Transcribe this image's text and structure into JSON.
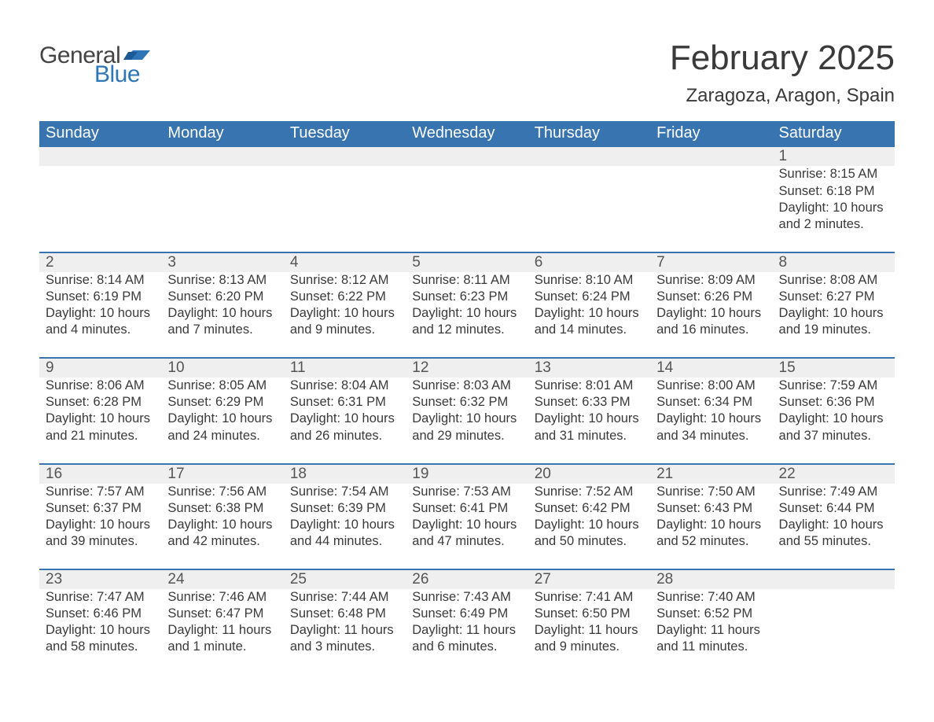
{
  "brand": {
    "word1": "General",
    "word2": "Blue",
    "word1_color": "#444444",
    "word2_color": "#2f76b8",
    "flag_color": "#2f76b8"
  },
  "title": "February 2025",
  "location": "Zaragoza, Aragon, Spain",
  "colors": {
    "header_bg": "#3874b0",
    "header_text": "#ffffff",
    "row_separator": "#3874b0",
    "daynum_bg": "#efefef",
    "text": "#3a3a3a",
    "background": "#ffffff"
  },
  "typography": {
    "title_fontsize": 44,
    "location_fontsize": 24,
    "dow_fontsize": 20,
    "daynum_fontsize": 19,
    "body_fontsize": 16.5
  },
  "layout": {
    "columns": 7,
    "rows": 5,
    "first_day_column_index": 6
  },
  "days_of_week": [
    "Sunday",
    "Monday",
    "Tuesday",
    "Wednesday",
    "Thursday",
    "Friday",
    "Saturday"
  ],
  "weeks": [
    [
      null,
      null,
      null,
      null,
      null,
      null,
      {
        "n": "1",
        "sunrise": "Sunrise: 8:15 AM",
        "sunset": "Sunset: 6:18 PM",
        "day1": "Daylight: 10 hours",
        "day2": "and 2 minutes."
      }
    ],
    [
      {
        "n": "2",
        "sunrise": "Sunrise: 8:14 AM",
        "sunset": "Sunset: 6:19 PM",
        "day1": "Daylight: 10 hours",
        "day2": "and 4 minutes."
      },
      {
        "n": "3",
        "sunrise": "Sunrise: 8:13 AM",
        "sunset": "Sunset: 6:20 PM",
        "day1": "Daylight: 10 hours",
        "day2": "and 7 minutes."
      },
      {
        "n": "4",
        "sunrise": "Sunrise: 8:12 AM",
        "sunset": "Sunset: 6:22 PM",
        "day1": "Daylight: 10 hours",
        "day2": "and 9 minutes."
      },
      {
        "n": "5",
        "sunrise": "Sunrise: 8:11 AM",
        "sunset": "Sunset: 6:23 PM",
        "day1": "Daylight: 10 hours",
        "day2": "and 12 minutes."
      },
      {
        "n": "6",
        "sunrise": "Sunrise: 8:10 AM",
        "sunset": "Sunset: 6:24 PM",
        "day1": "Daylight: 10 hours",
        "day2": "and 14 minutes."
      },
      {
        "n": "7",
        "sunrise": "Sunrise: 8:09 AM",
        "sunset": "Sunset: 6:26 PM",
        "day1": "Daylight: 10 hours",
        "day2": "and 16 minutes."
      },
      {
        "n": "8",
        "sunrise": "Sunrise: 8:08 AM",
        "sunset": "Sunset: 6:27 PM",
        "day1": "Daylight: 10 hours",
        "day2": "and 19 minutes."
      }
    ],
    [
      {
        "n": "9",
        "sunrise": "Sunrise: 8:06 AM",
        "sunset": "Sunset: 6:28 PM",
        "day1": "Daylight: 10 hours",
        "day2": "and 21 minutes."
      },
      {
        "n": "10",
        "sunrise": "Sunrise: 8:05 AM",
        "sunset": "Sunset: 6:29 PM",
        "day1": "Daylight: 10 hours",
        "day2": "and 24 minutes."
      },
      {
        "n": "11",
        "sunrise": "Sunrise: 8:04 AM",
        "sunset": "Sunset: 6:31 PM",
        "day1": "Daylight: 10 hours",
        "day2": "and 26 minutes."
      },
      {
        "n": "12",
        "sunrise": "Sunrise: 8:03 AM",
        "sunset": "Sunset: 6:32 PM",
        "day1": "Daylight: 10 hours",
        "day2": "and 29 minutes."
      },
      {
        "n": "13",
        "sunrise": "Sunrise: 8:01 AM",
        "sunset": "Sunset: 6:33 PM",
        "day1": "Daylight: 10 hours",
        "day2": "and 31 minutes."
      },
      {
        "n": "14",
        "sunrise": "Sunrise: 8:00 AM",
        "sunset": "Sunset: 6:34 PM",
        "day1": "Daylight: 10 hours",
        "day2": "and 34 minutes."
      },
      {
        "n": "15",
        "sunrise": "Sunrise: 7:59 AM",
        "sunset": "Sunset: 6:36 PM",
        "day1": "Daylight: 10 hours",
        "day2": "and 37 minutes."
      }
    ],
    [
      {
        "n": "16",
        "sunrise": "Sunrise: 7:57 AM",
        "sunset": "Sunset: 6:37 PM",
        "day1": "Daylight: 10 hours",
        "day2": "and 39 minutes."
      },
      {
        "n": "17",
        "sunrise": "Sunrise: 7:56 AM",
        "sunset": "Sunset: 6:38 PM",
        "day1": "Daylight: 10 hours",
        "day2": "and 42 minutes."
      },
      {
        "n": "18",
        "sunrise": "Sunrise: 7:54 AM",
        "sunset": "Sunset: 6:39 PM",
        "day1": "Daylight: 10 hours",
        "day2": "and 44 minutes."
      },
      {
        "n": "19",
        "sunrise": "Sunrise: 7:53 AM",
        "sunset": "Sunset: 6:41 PM",
        "day1": "Daylight: 10 hours",
        "day2": "and 47 minutes."
      },
      {
        "n": "20",
        "sunrise": "Sunrise: 7:52 AM",
        "sunset": "Sunset: 6:42 PM",
        "day1": "Daylight: 10 hours",
        "day2": "and 50 minutes."
      },
      {
        "n": "21",
        "sunrise": "Sunrise: 7:50 AM",
        "sunset": "Sunset: 6:43 PM",
        "day1": "Daylight: 10 hours",
        "day2": "and 52 minutes."
      },
      {
        "n": "22",
        "sunrise": "Sunrise: 7:49 AM",
        "sunset": "Sunset: 6:44 PM",
        "day1": "Daylight: 10 hours",
        "day2": "and 55 minutes."
      }
    ],
    [
      {
        "n": "23",
        "sunrise": "Sunrise: 7:47 AM",
        "sunset": "Sunset: 6:46 PM",
        "day1": "Daylight: 10 hours",
        "day2": "and 58 minutes."
      },
      {
        "n": "24",
        "sunrise": "Sunrise: 7:46 AM",
        "sunset": "Sunset: 6:47 PM",
        "day1": "Daylight: 11 hours",
        "day2": "and 1 minute."
      },
      {
        "n": "25",
        "sunrise": "Sunrise: 7:44 AM",
        "sunset": "Sunset: 6:48 PM",
        "day1": "Daylight: 11 hours",
        "day2": "and 3 minutes."
      },
      {
        "n": "26",
        "sunrise": "Sunrise: 7:43 AM",
        "sunset": "Sunset: 6:49 PM",
        "day1": "Daylight: 11 hours",
        "day2": "and 6 minutes."
      },
      {
        "n": "27",
        "sunrise": "Sunrise: 7:41 AM",
        "sunset": "Sunset: 6:50 PM",
        "day1": "Daylight: 11 hours",
        "day2": "and 9 minutes."
      },
      {
        "n": "28",
        "sunrise": "Sunrise: 7:40 AM",
        "sunset": "Sunset: 6:52 PM",
        "day1": "Daylight: 11 hours",
        "day2": "and 11 minutes."
      },
      null
    ]
  ]
}
